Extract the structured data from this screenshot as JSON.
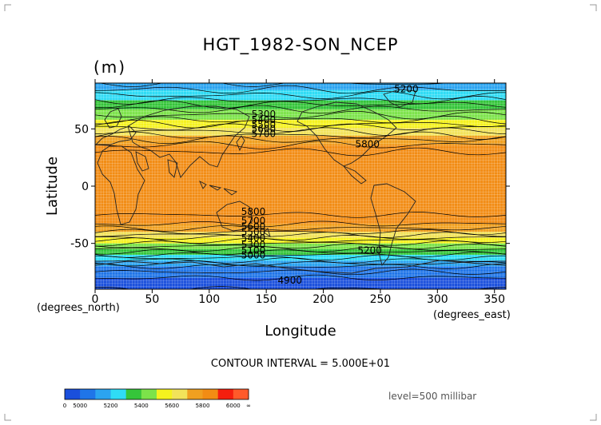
{
  "chart_data": {
    "type": "heatmap",
    "title": "HGT_1982-SON_NCEP",
    "units_label": "(m)",
    "xlabel": "Longitude",
    "ylabel": "Latitude",
    "x_unit_note": "(degrees_east)",
    "y_unit_note": "(degrees_north)",
    "xlim": [
      0,
      360
    ],
    "ylim": [
      -90,
      90
    ],
    "x_ticks": [
      0,
      50,
      100,
      150,
      200,
      250,
      300,
      350
    ],
    "y_ticks": [
      -50,
      0,
      50
    ],
    "contour_interval_text": "CONTOUR INTERVAL = 5.000E+01",
    "level_text": "level=500 millibar",
    "zonal_profile": {
      "lat": [
        90,
        82,
        75,
        70,
        65,
        60,
        55,
        50,
        45,
        40,
        35,
        30,
        20,
        0,
        -20,
        -30,
        -35,
        -40,
        -45,
        -50,
        -55,
        -60,
        -65,
        -70,
        -80,
        -90
      ],
      "value": [
        5150,
        5220,
        5300,
        5370,
        5420,
        5470,
        5540,
        5620,
        5690,
        5760,
        5810,
        5850,
        5870,
        5880,
        5870,
        5830,
        5780,
        5700,
        5600,
        5500,
        5400,
        5300,
        5200,
        5100,
        5000,
        4950
      ]
    },
    "contour_labels": [
      {
        "text": "5300",
        "lon": 137,
        "lat": 60
      },
      {
        "text": "5400",
        "lon": 137,
        "lat": 55
      },
      {
        "text": "5500",
        "lon": 137,
        "lat": 51
      },
      {
        "text": "5600",
        "lon": 137,
        "lat": 47
      },
      {
        "text": "5700",
        "lon": 137,
        "lat": 43
      },
      {
        "text": "5800",
        "lon": 228,
        "lat": 34
      },
      {
        "text": "5200",
        "lon": 262,
        "lat": 82
      },
      {
        "text": "5800",
        "lon": 128,
        "lat": -25
      },
      {
        "text": "5700",
        "lon": 128,
        "lat": -33
      },
      {
        "text": "5600",
        "lon": 128,
        "lat": -38
      },
      {
        "text": "5500",
        "lon": 128,
        "lat": -43
      },
      {
        "text": "5400",
        "lon": 128,
        "lat": -48
      },
      {
        "text": "5300",
        "lon": 128,
        "lat": -54
      },
      {
        "text": "5100",
        "lon": 128,
        "lat": -59
      },
      {
        "text": "5000",
        "lon": 128,
        "lat": -63
      },
      {
        "text": "5200",
        "lon": 230,
        "lat": -59
      },
      {
        "text": "4900",
        "lon": 160,
        "lat": -85
      }
    ],
    "colorbar": {
      "colors": [
        "#1a4fdc",
        "#1f75e8",
        "#2ba4f0",
        "#2fdcf5",
        "#35c53a",
        "#7ce34a",
        "#f5f21e",
        "#f2e35a",
        "#f0a020",
        "#f28c14",
        "#f51e0e",
        "#ff5a2a"
      ],
      "tick_labels": [
        "0",
        "5000",
        "5200",
        "5400",
        "5600",
        "5800",
        "6000",
        "∞"
      ]
    }
  }
}
